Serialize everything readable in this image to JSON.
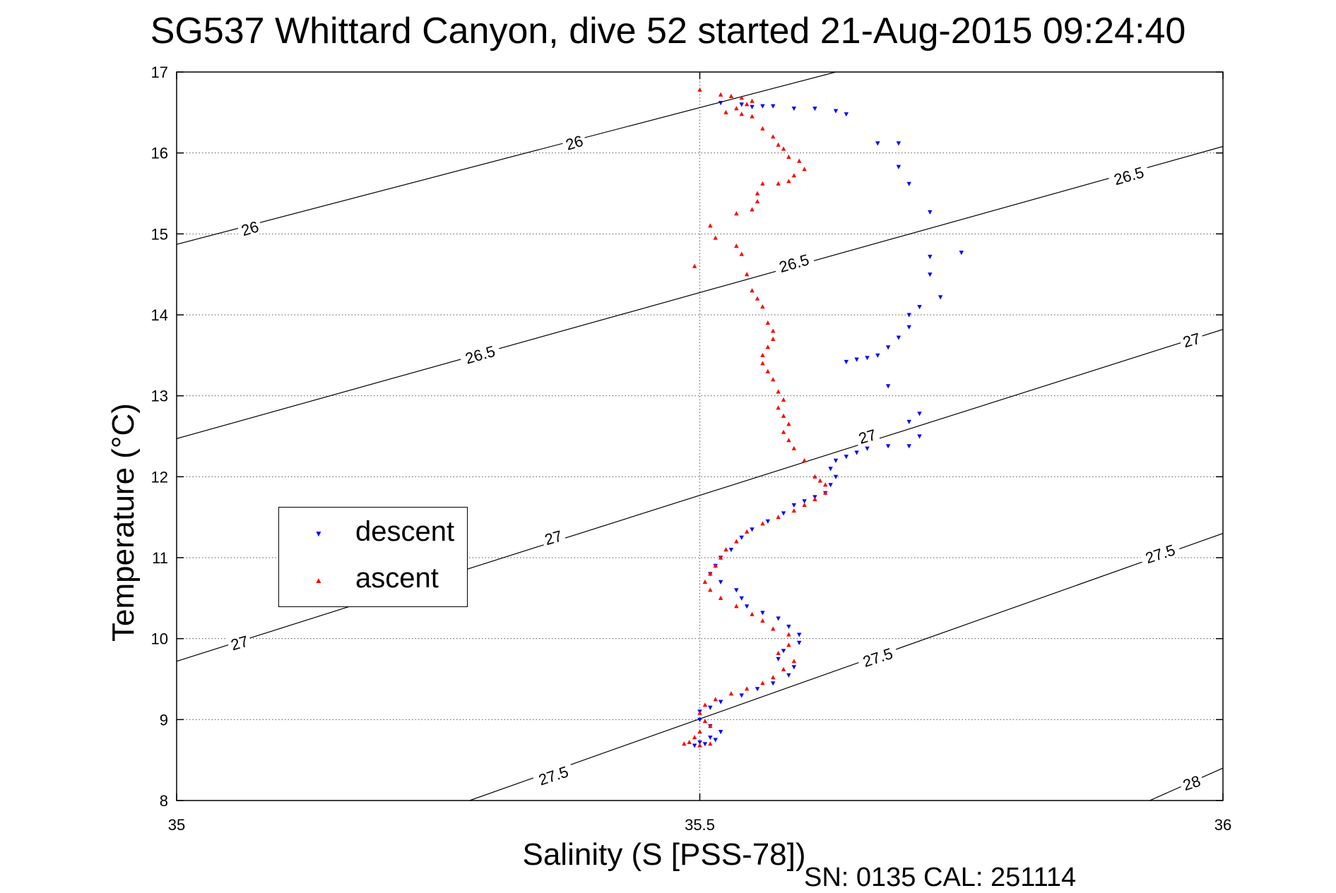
{
  "chart_data": {
    "type": "scatter",
    "title": "SG537 Whittard Canyon, dive 52 started 21-Aug-2015 09:24:40",
    "xlabel": "Salinity (S [PSS-78])",
    "ylabel": "Temperature (°C)",
    "xlim": [
      35,
      36
    ],
    "ylim": [
      8,
      17
    ],
    "xticks": [
      "35",
      "35.5",
      "36"
    ],
    "yticks": [
      "8",
      "9",
      "10",
      "11",
      "12",
      "13",
      "14",
      "15",
      "16",
      "17"
    ],
    "grid": true,
    "legend_placement": "center-left",
    "footer": "SN: 0135  CAL: 251114",
    "density_contours": {
      "lines": [
        {
          "sigma": 26.0,
          "points": [
            [
              35.0,
              14.87
            ],
            [
              35.63,
              17.0
            ]
          ]
        },
        {
          "sigma": 26.5,
          "points": [
            [
              35.0,
              12.47
            ],
            [
              36.0,
              16.08
            ]
          ]
        },
        {
          "sigma": 27.0,
          "points": [
            [
              35.0,
              9.72
            ],
            [
              36.0,
              13.82
            ]
          ]
        },
        {
          "sigma": 27.5,
          "points": [
            [
              35.28,
              8.0
            ],
            [
              36.0,
              11.3
            ]
          ]
        },
        {
          "sigma": 28.0,
          "points": [
            [
              35.93,
              8.0
            ],
            [
              36.0,
              8.4
            ]
          ]
        }
      ],
      "labels": [
        {
          "text": "26",
          "s": 35.38,
          "t": 16.13,
          "angle": -17
        },
        {
          "text": "26",
          "s": 35.07,
          "t": 15.07,
          "angle": -17
        },
        {
          "text": "26.5",
          "s": 35.91,
          "t": 15.72,
          "angle": -16
        },
        {
          "text": "26.5",
          "s": 35.59,
          "t": 14.64,
          "angle": -16
        },
        {
          "text": "26.5",
          "s": 35.29,
          "t": 13.51,
          "angle": -16
        },
        {
          "text": "27",
          "s": 35.97,
          "t": 13.69,
          "angle": -16
        },
        {
          "text": "27",
          "s": 35.66,
          "t": 12.5,
          "angle": -16
        },
        {
          "text": "27",
          "s": 35.36,
          "t": 11.25,
          "angle": -16
        },
        {
          "text": "27",
          "s": 35.06,
          "t": 9.95,
          "angle": -16
        },
        {
          "text": "27.5",
          "s": 35.94,
          "t": 11.05,
          "angle": -18
        },
        {
          "text": "27.5",
          "s": 35.67,
          "t": 9.77,
          "angle": -18
        },
        {
          "text": "27.5",
          "s": 35.36,
          "t": 8.31,
          "angle": -18
        },
        {
          "text": "28",
          "s": 35.97,
          "t": 8.22,
          "angle": -18
        }
      ]
    },
    "series": [
      {
        "name": "descent",
        "color": "#0000ff",
        "marker": "triangle-down",
        "points": [
          [
            35.52,
            16.62
          ],
          [
            35.54,
            16.6
          ],
          [
            35.55,
            16.57
          ],
          [
            35.56,
            16.58
          ],
          [
            35.57,
            16.58
          ],
          [
            35.59,
            16.55
          ],
          [
            35.61,
            16.55
          ],
          [
            35.63,
            16.52
          ],
          [
            35.64,
            16.48
          ],
          [
            35.67,
            16.12
          ],
          [
            35.69,
            16.12
          ],
          [
            35.69,
            15.83
          ],
          [
            35.7,
            15.62
          ],
          [
            35.72,
            15.27
          ],
          [
            35.75,
            14.77
          ],
          [
            35.72,
            14.72
          ],
          [
            35.72,
            14.5
          ],
          [
            35.73,
            14.22
          ],
          [
            35.71,
            14.1
          ],
          [
            35.7,
            14.0
          ],
          [
            35.7,
            13.85
          ],
          [
            35.69,
            13.72
          ],
          [
            35.68,
            13.6
          ],
          [
            35.67,
            13.5
          ],
          [
            35.66,
            13.47
          ],
          [
            35.65,
            13.45
          ],
          [
            35.64,
            13.42
          ],
          [
            35.68,
            13.12
          ],
          [
            35.71,
            12.78
          ],
          [
            35.7,
            12.68
          ],
          [
            35.71,
            12.5
          ],
          [
            35.7,
            12.38
          ],
          [
            35.68,
            12.38
          ],
          [
            35.66,
            12.35
          ],
          [
            35.65,
            12.3
          ],
          [
            35.64,
            12.25
          ],
          [
            35.63,
            12.2
          ],
          [
            35.625,
            12.1
          ],
          [
            35.63,
            12.0
          ],
          [
            35.625,
            11.9
          ],
          [
            35.62,
            11.8
          ],
          [
            35.61,
            11.75
          ],
          [
            35.6,
            11.7
          ],
          [
            35.59,
            11.65
          ],
          [
            35.58,
            11.55
          ],
          [
            35.565,
            11.45
          ],
          [
            35.55,
            11.35
          ],
          [
            35.54,
            11.25
          ],
          [
            35.53,
            11.1
          ],
          [
            35.52,
            11.0
          ],
          [
            35.515,
            10.9
          ],
          [
            35.51,
            10.8
          ],
          [
            35.52,
            10.7
          ],
          [
            35.535,
            10.6
          ],
          [
            35.54,
            10.5
          ],
          [
            35.545,
            10.4
          ],
          [
            35.56,
            10.32
          ],
          [
            35.575,
            10.25
          ],
          [
            35.585,
            10.15
          ],
          [
            35.595,
            10.05
          ],
          [
            35.595,
            9.95
          ],
          [
            35.58,
            9.85
          ],
          [
            35.575,
            9.75
          ],
          [
            35.59,
            9.65
          ],
          [
            35.585,
            9.55
          ],
          [
            35.57,
            9.45
          ],
          [
            35.555,
            9.38
          ],
          [
            35.54,
            9.3
          ],
          [
            35.52,
            9.22
          ],
          [
            35.51,
            9.15
          ],
          [
            35.5,
            9.1
          ],
          [
            35.5,
            9.0
          ],
          [
            35.51,
            8.92
          ],
          [
            35.52,
            8.85
          ],
          [
            35.51,
            8.78
          ],
          [
            35.5,
            8.72
          ],
          [
            35.495,
            8.68
          ],
          [
            35.505,
            8.7
          ],
          [
            35.515,
            8.75
          ]
        ]
      },
      {
        "name": "ascent",
        "color": "#ff0000",
        "marker": "triangle-up",
        "points": [
          [
            35.5,
            16.78
          ],
          [
            35.52,
            16.72
          ],
          [
            35.53,
            16.7
          ],
          [
            35.54,
            16.68
          ],
          [
            35.55,
            16.64
          ],
          [
            35.545,
            16.6
          ],
          [
            35.535,
            16.55
          ],
          [
            35.525,
            16.5
          ],
          [
            35.54,
            16.48
          ],
          [
            35.55,
            16.45
          ],
          [
            35.56,
            16.3
          ],
          [
            35.57,
            16.2
          ],
          [
            35.575,
            16.1
          ],
          [
            35.58,
            16.05
          ],
          [
            35.585,
            15.95
          ],
          [
            35.595,
            15.9
          ],
          [
            35.6,
            15.8
          ],
          [
            35.59,
            15.72
          ],
          [
            35.585,
            15.65
          ],
          [
            35.575,
            15.62
          ],
          [
            35.56,
            15.62
          ],
          [
            35.555,
            15.5
          ],
          [
            35.555,
            15.4
          ],
          [
            35.55,
            15.3
          ],
          [
            35.535,
            15.25
          ],
          [
            35.51,
            15.1
          ],
          [
            35.515,
            14.95
          ],
          [
            35.535,
            14.85
          ],
          [
            35.54,
            14.75
          ],
          [
            35.495,
            14.6
          ],
          [
            35.545,
            14.5
          ],
          [
            35.55,
            14.3
          ],
          [
            35.555,
            14.2
          ],
          [
            35.56,
            14.1
          ],
          [
            35.565,
            13.9
          ],
          [
            35.57,
            13.8
          ],
          [
            35.57,
            13.7
          ],
          [
            35.565,
            13.6
          ],
          [
            35.56,
            13.5
          ],
          [
            35.56,
            13.4
          ],
          [
            35.565,
            13.3
          ],
          [
            35.57,
            13.2
          ],
          [
            35.575,
            13.05
          ],
          [
            35.58,
            12.95
          ],
          [
            35.575,
            12.85
          ],
          [
            35.58,
            12.75
          ],
          [
            35.585,
            12.65
          ],
          [
            35.58,
            12.55
          ],
          [
            35.585,
            12.45
          ],
          [
            35.59,
            12.35
          ],
          [
            35.6,
            12.2
          ],
          [
            35.61,
            12.0
          ],
          [
            35.615,
            11.95
          ],
          [
            35.62,
            11.9
          ],
          [
            35.62,
            11.8
          ],
          [
            35.61,
            11.72
          ],
          [
            35.6,
            11.65
          ],
          [
            35.59,
            11.58
          ],
          [
            35.575,
            11.5
          ],
          [
            35.56,
            11.42
          ],
          [
            35.545,
            11.32
          ],
          [
            35.535,
            11.2
          ],
          [
            35.525,
            11.1
          ],
          [
            35.52,
            11.0
          ],
          [
            35.515,
            10.9
          ],
          [
            35.51,
            10.8
          ],
          [
            35.505,
            10.7
          ],
          [
            35.51,
            10.6
          ],
          [
            35.52,
            10.5
          ],
          [
            35.535,
            10.4
          ],
          [
            35.55,
            10.3
          ],
          [
            35.56,
            10.22
          ],
          [
            35.57,
            10.12
          ],
          [
            35.585,
            10.05
          ],
          [
            35.585,
            9.92
          ],
          [
            35.575,
            9.82
          ],
          [
            35.59,
            9.72
          ],
          [
            35.58,
            9.62
          ],
          [
            35.57,
            9.52
          ],
          [
            35.56,
            9.45
          ],
          [
            35.545,
            9.38
          ],
          [
            35.53,
            9.32
          ],
          [
            35.515,
            9.25
          ],
          [
            35.505,
            9.18
          ],
          [
            35.5,
            9.08
          ],
          [
            35.505,
            8.98
          ],
          [
            35.51,
            8.92
          ],
          [
            35.5,
            8.85
          ],
          [
            35.495,
            8.78
          ],
          [
            35.49,
            8.72
          ],
          [
            35.485,
            8.7
          ],
          [
            35.5,
            8.68
          ],
          [
            35.51,
            8.7
          ]
        ]
      }
    ]
  }
}
